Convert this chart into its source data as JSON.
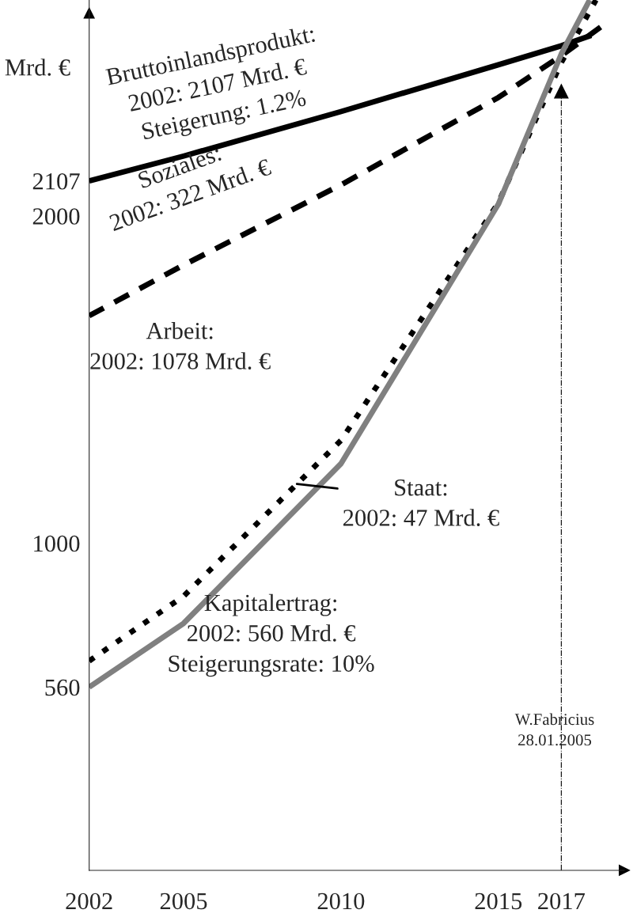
{
  "chart_data": {
    "type": "line",
    "ylabel": "Mrd. €",
    "series": [
      {
        "color": "#000000",
        "line_style": "solid",
        "x": [
          2002,
          2005,
          2010,
          2015,
          2017,
          2017.95
        ],
        "values": [
          2107,
          2183,
          2319,
          2462,
          2520,
          2552
        ]
      },
      {
        "color": "#000000",
        "line_style": "dashed",
        "x": [
          2002,
          2005,
          2010,
          2015,
          2017,
          2018.4
        ],
        "values": [
          1695,
          1850,
          2095,
          2362,
          2490,
          2588
        ]
      },
      {
        "color": "#000000",
        "line_style": "dotted",
        "x": [
          2002,
          2005,
          2010,
          2015,
          2017,
          2018.1
        ],
        "values": [
          640,
          838,
          1314,
          2040,
          2469,
          2660
        ]
      },
      {
        "color": "#808080",
        "line_style": "solid",
        "x": [
          2002,
          2005,
          2010,
          2015,
          2017,
          2017.9
        ],
        "values": [
          560,
          755,
          1243,
          2036,
          2495,
          2660
        ]
      }
    ],
    "xlim": [
      2002,
      2019
    ],
    "ylim": [
      0,
      2660
    ],
    "xticks": [
      2002,
      2005,
      2010,
      2015,
      2017
    ],
    "yticks": [
      560,
      1000,
      2000,
      2107
    ],
    "marker": "none",
    "grid": false,
    "legend": false,
    "ref_lines": [
      {
        "axis": "x",
        "value": 2017,
        "color": "#000000",
        "line_style": "dashdot"
      }
    ],
    "annotations": [
      "Bruttoinlandsprodukt:\n2002: 2107 Mrd. €\nSteigerung: 1.2%",
      "Soziales:\n2002: 322 Mrd. €",
      "Arbeit:\n2002: 1078 Mrd. €",
      {
        "text": "Staat:\n2002: 47 Mrd. €",
        "x": 2008.6,
        "y": 1181
      },
      "Kapitalertrag:\n2002: 560 Mrd. €\nSteigerungsrate: 10%",
      "W.Fabricius\n28.01.2005"
    ]
  }
}
